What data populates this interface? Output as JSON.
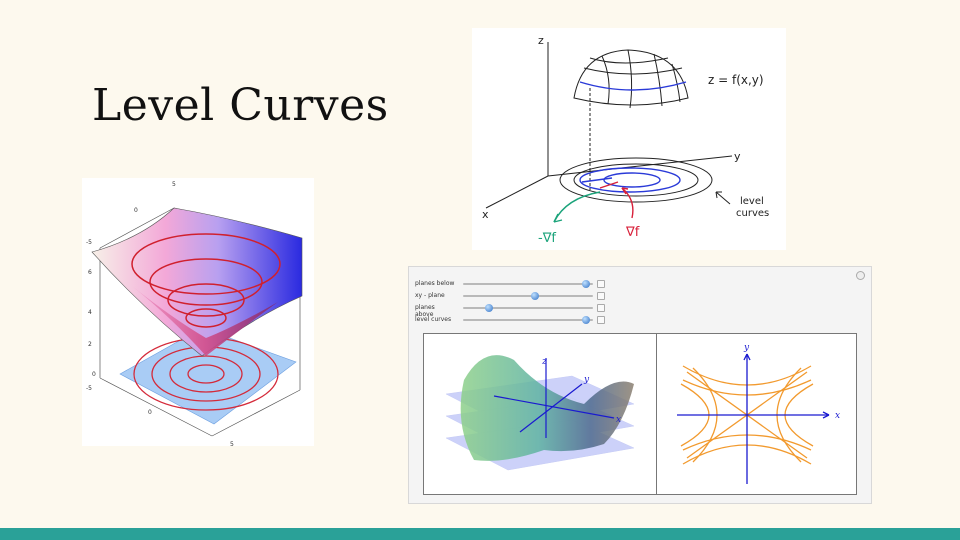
{
  "slide": {
    "title": "Level Curves",
    "footer_color": "#2aa198",
    "background": "#fdf9ee"
  },
  "cone_plot": {
    "axis_ticks": [
      "5",
      "0",
      "-5",
      "6",
      "4",
      "2",
      "0",
      "-5",
      "0",
      "5"
    ]
  },
  "sketch": {
    "z_label": "z",
    "y_label": "y",
    "x_label": "x",
    "surface_label": "z = f(x,y)",
    "level_label_line1": "level",
    "level_label_line2": "curves",
    "neg_grad_label": "-∇f",
    "grad_label": "∇f"
  },
  "demo": {
    "controls": [
      {
        "label": "planes below",
        "value": 0.95
      },
      {
        "label": "xy - plane",
        "value": 0.55
      },
      {
        "label": "planes above",
        "value": 0.2
      },
      {
        "label": "level curves",
        "value": 0.95
      }
    ],
    "surface_axes": {
      "z": "z",
      "y": "y",
      "x": "x"
    },
    "contour_axes": {
      "y": "y",
      "x": "x"
    }
  }
}
